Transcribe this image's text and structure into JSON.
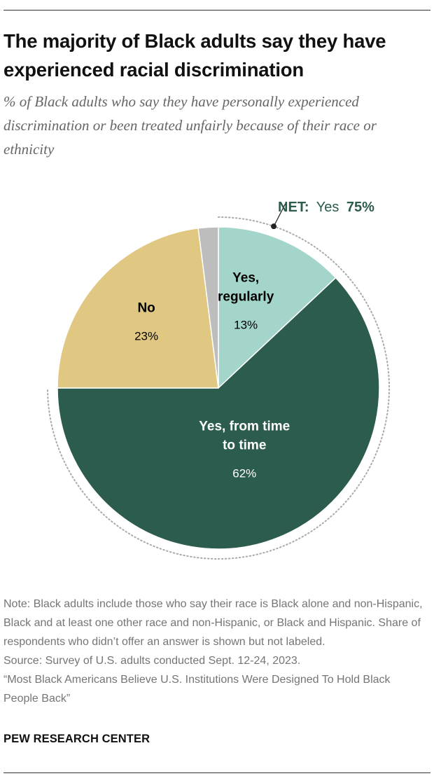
{
  "title": "The majority of Black adults say they have experienced racial discrimination",
  "subtitle": "% of Black adults who say they have personally experienced discrimination or been treated unfairly because of their race or ethnicity",
  "chart_data": {
    "type": "pie",
    "title": "The majority of Black adults say they have experienced racial discrimination",
    "subtitle": "% of Black adults who say they have personally experienced discrimination or been treated unfairly because of their race or ethnicity",
    "slices": [
      {
        "name": "Yes, regularly",
        "label_lines": [
          "Yes,",
          "regularly"
        ],
        "value": 13,
        "value_label": "13%",
        "color": "#a3d5cb",
        "label_color": "#000000"
      },
      {
        "name": "Yes, from time to time",
        "label_lines": [
          "Yes, from time",
          "to time"
        ],
        "value": 62,
        "value_label": "62%",
        "color": "#2c5c4e",
        "label_color": "#ffffff"
      },
      {
        "name": "No",
        "label_lines": [
          "No"
        ],
        "value": 23,
        "value_label": "23%",
        "color": "#e1c882",
        "label_color": "#000000"
      },
      {
        "name": "No answer",
        "label_lines": [],
        "value": 2,
        "value_label": "",
        "color": "#bdbdbd",
        "label_color": "#000000"
      }
    ],
    "net": {
      "bold_label": "NET:",
      "label": "Yes",
      "value_label": "75%",
      "value": 75,
      "color": "#2c5c4e"
    }
  },
  "footer": {
    "note": "Note: Black adults include those who say their race is Black alone and non-Hispanic, Black and at least one other race and non-Hispanic, or Black and Hispanic. Share of respondents who didn’t offer an answer is shown but not labeled.",
    "source": "Source: Survey of U.S. adults conducted Sept. 12-24, 2023.",
    "report": "“Most Black Americans Believe U.S. Institutions Were Designed To Hold Black People Back”",
    "brand": "PEW RESEARCH CENTER"
  }
}
